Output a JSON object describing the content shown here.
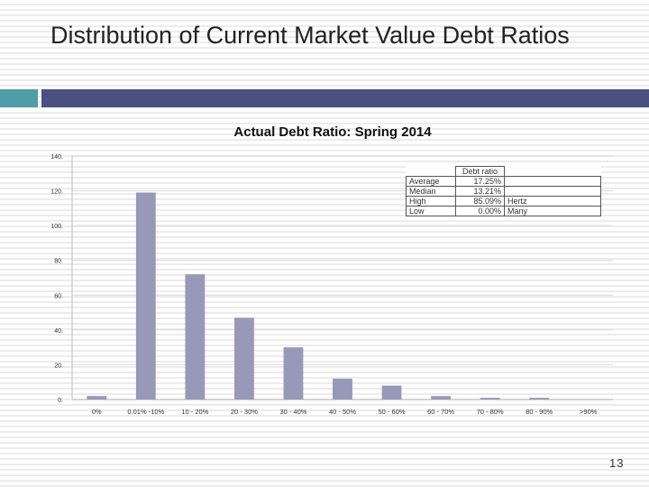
{
  "slide": {
    "title": "Distribution of Current Market Value Debt Ratios",
    "page_number": "13"
  },
  "colors": {
    "accent_bar": "#4f9da6",
    "title_bar": "#4a5082",
    "bar_fill": "#9899b8",
    "grid": "#d9d9d9"
  },
  "chart_data": {
    "type": "bar",
    "title": "Actual Debt Ratio: Spring 2014",
    "categories": [
      "0%",
      "0.01% -10%",
      "10 - 20%",
      "20 - 30%",
      "30 - 40%",
      "40 - 50%",
      "50 - 60%",
      "60 - 70%",
      "70 - 80%",
      "80 - 90%",
      ">90%"
    ],
    "values": [
      2,
      119,
      72,
      47,
      30,
      12,
      8,
      2,
      1,
      1,
      0
    ],
    "ylim": [
      0,
      140
    ],
    "yticks": [
      "0.",
      "20.",
      "40.",
      "60.",
      "80.",
      "100.",
      "120.",
      "140."
    ],
    "grid": true,
    "legend": false
  },
  "stats_table": {
    "header": "Debt ratio",
    "rows": [
      {
        "label": "Average",
        "value": "17.25%",
        "note": ""
      },
      {
        "label": "Median",
        "value": "13.21%",
        "note": ""
      },
      {
        "label": "High",
        "value": "85.09%",
        "note": "Hertz"
      },
      {
        "label": "Low",
        "value": "0.00%",
        "note": "Many"
      }
    ]
  }
}
